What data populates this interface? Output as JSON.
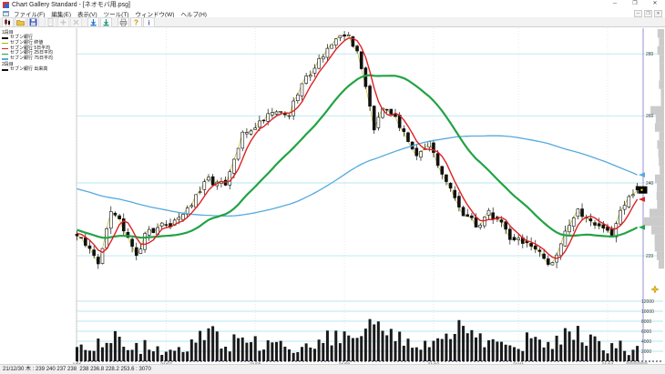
{
  "window": {
    "title": "Chart Gallery Standard - [ネオモバ用.psg]",
    "controls": {
      "minimize": "─",
      "restore": "❐",
      "close": "✕"
    }
  },
  "menu": {
    "items": [
      "ファイル(F)",
      "編集(E)",
      "表示(V)",
      "ツール(T)",
      "ウィンドウ(W)",
      "ヘルプ(H)"
    ]
  },
  "toolbar": {
    "buttons": [
      {
        "name": "chart-button",
        "type": "candle",
        "disabled": false
      },
      {
        "name": "open-file-button",
        "type": "folder",
        "disabled": false
      },
      {
        "name": "save-file-button",
        "type": "floppy",
        "disabled": false
      },
      {
        "name": "copy-button",
        "type": "page",
        "disabled": true
      },
      {
        "name": "add-button",
        "type": "plus",
        "disabled": true
      },
      {
        "name": "delete-button",
        "type": "cross",
        "disabled": true
      },
      {
        "name": "update-daily-button",
        "type": "down1",
        "disabled": false
      },
      {
        "name": "update-all-button",
        "type": "down2",
        "disabled": false
      },
      {
        "name": "print-button",
        "type": "printer",
        "disabled": false
      },
      {
        "name": "help-button",
        "type": "help",
        "disabled": false
      },
      {
        "name": "about-button",
        "type": "info",
        "disabled": false
      }
    ]
  },
  "legend": {
    "panels": [
      {
        "title": "1段目",
        "items": [
          {
            "label": "セブン銀行",
            "color": "#111111"
          },
          {
            "label": "セブン銀行 終値",
            "color": "#b5b000"
          },
          {
            "label": "セブン銀行 5日平均",
            "color": "#dd2222"
          },
          {
            "label": "セブン銀行 25日平均",
            "color": "#22a344"
          },
          {
            "label": "セブン銀行 75日平均",
            "color": "#55aadd"
          }
        ]
      },
      {
        "title": "2段目",
        "items": [
          {
            "label": "セブン銀行 出来高",
            "color": "#111111"
          }
        ]
      }
    ]
  },
  "statusbar": {
    "text": "21/12/30 木 : 239 240 237 238  238 236.8 228.2 253.6 : 3070"
  },
  "chart_data": {
    "type": "candlestick+volume",
    "instrument": "セブン銀行",
    "scale": "log",
    "grid": true,
    "price_axis": {
      "ticks": [
        280,
        260,
        240,
        220
      ],
      "side": "right",
      "ylim": [
        214,
        291
      ]
    },
    "volume_axis": {
      "ticks": [
        12000,
        10000,
        8000,
        6000,
        4000,
        2000
      ],
      "side": "right",
      "ylim": [
        0,
        13000
      ]
    },
    "x_ticks": [
      {
        "label": "1/06",
        "day": 0
      },
      {
        "label": "21/07",
        "day": 21
      },
      {
        "label": "21/08",
        "day": 42
      },
      {
        "label": "21/09",
        "day": 63
      },
      {
        "label": "21/10",
        "day": 84
      },
      {
        "label": "21/11",
        "day": 104
      },
      {
        "label": "21/12",
        "day": 125
      }
    ],
    "days_visible": 133,
    "close_anchors": [
      [
        0,
        226
      ],
      [
        5,
        218
      ],
      [
        8,
        233
      ],
      [
        12,
        226
      ],
      [
        14,
        220.5
      ],
      [
        17,
        227
      ],
      [
        22,
        228.5
      ],
      [
        27,
        234
      ],
      [
        31,
        241
      ],
      [
        35,
        239
      ],
      [
        39,
        254
      ],
      [
        43,
        258
      ],
      [
        46,
        262
      ],
      [
        50,
        260.5
      ],
      [
        53,
        270
      ],
      [
        56,
        276
      ],
      [
        59,
        282
      ],
      [
        63,
        286
      ],
      [
        64,
        286.5
      ],
      [
        66,
        280
      ],
      [
        68,
        270
      ],
      [
        70,
        256.5
      ],
      [
        72,
        263.5
      ],
      [
        75,
        260.5
      ],
      [
        77,
        254
      ],
      [
        80,
        249
      ],
      [
        83,
        251.5
      ],
      [
        85,
        244
      ],
      [
        88,
        238
      ],
      [
        91,
        231
      ],
      [
        94,
        228
      ],
      [
        97,
        231.5
      ],
      [
        100,
        229
      ],
      [
        102,
        225
      ],
      [
        106,
        223.5
      ],
      [
        108,
        221
      ],
      [
        111,
        218
      ],
      [
        113,
        220.5
      ],
      [
        115,
        227
      ],
      [
        118,
        231.5
      ],
      [
        121,
        230
      ],
      [
        123,
        228
      ],
      [
        126,
        226
      ],
      [
        128,
        231.5
      ],
      [
        130,
        235.5
      ],
      [
        132,
        238.5
      ]
    ],
    "prehistory_anchors": [
      [
        -80,
        247
      ],
      [
        -55,
        246
      ],
      [
        -35,
        242
      ],
      [
        -26,
        237
      ],
      [
        -22,
        230
      ],
      [
        -15,
        226
      ],
      [
        -8,
        225
      ],
      [
        -1,
        226
      ]
    ],
    "volume_anchors": [
      [
        0,
        2800
      ],
      [
        4,
        3600
      ],
      [
        8,
        5400
      ],
      [
        12,
        3000
      ],
      [
        17,
        2500
      ],
      [
        21,
        2400
      ],
      [
        27,
        3300
      ],
      [
        31,
        6000
      ],
      [
        35,
        3200
      ],
      [
        39,
        5000
      ],
      [
        43,
        3500
      ],
      [
        46,
        4300
      ],
      [
        50,
        3000
      ],
      [
        53,
        3900
      ],
      [
        56,
        4300
      ],
      [
        59,
        5200
      ],
      [
        63,
        6500
      ],
      [
        66,
        5600
      ],
      [
        68,
        9000
      ],
      [
        70,
        7600
      ],
      [
        72,
        6200
      ],
      [
        75,
        5200
      ],
      [
        77,
        4300
      ],
      [
        80,
        3700
      ],
      [
        83,
        3300
      ],
      [
        85,
        4700
      ],
      [
        88,
        4100
      ],
      [
        90,
        6800
      ],
      [
        91,
        12600
      ],
      [
        92,
        6800
      ],
      [
        94,
        5000
      ],
      [
        97,
        3500
      ],
      [
        100,
        3000
      ],
      [
        102,
        3400
      ],
      [
        105,
        3900
      ],
      [
        108,
        4500
      ],
      [
        111,
        5200
      ],
      [
        113,
        4200
      ],
      [
        115,
        5800
      ],
      [
        118,
        6600
      ],
      [
        121,
        4200
      ],
      [
        123,
        3200
      ],
      [
        125,
        2700
      ],
      [
        128,
        3700
      ],
      [
        130,
        2300
      ],
      [
        132,
        3000
      ]
    ],
    "moving_averages": [
      {
        "period": 5,
        "color": "#dd2222",
        "width": 1.4
      },
      {
        "period": 25,
        "color": "#22a344",
        "width": 2.2
      },
      {
        "period": 75,
        "color": "#55aadd",
        "width": 1.3
      }
    ],
    "close_line_color": "#b5b000",
    "grid_color": "#b7e7ef",
    "axis_line_color": "#9193d0",
    "profile_color": "#cbcbcb",
    "last_ohlc": {
      "open": 239,
      "high": 240,
      "low": 237,
      "close": 238,
      "volume": 3070
    }
  }
}
